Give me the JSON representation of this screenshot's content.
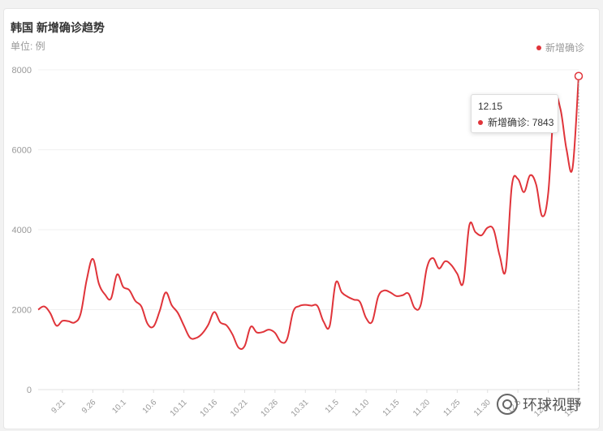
{
  "title": "韩国 新增确诊趋势",
  "subtitle": "单位: 例",
  "legend_label": "新增确诊",
  "tooltip": {
    "date": "12.15",
    "label": "新增确诊",
    "value": "7843"
  },
  "watermark": "环球视野",
  "colors": {
    "series": "#e0343a",
    "grid": "#f0f0f0"
  },
  "chart_data": {
    "type": "line",
    "title": "韩国 新增确诊趋势",
    "ylabel": "单位: 例",
    "ylim": [
      0,
      8000
    ],
    "yticks": [
      0,
      2000,
      4000,
      6000,
      8000
    ],
    "xticks": [
      "9.21",
      "9.26",
      "10.1",
      "10.6",
      "10.11",
      "10.16",
      "10.21",
      "10.26",
      "10.31",
      "11.5",
      "11.10",
      "11.15",
      "11.20",
      "11.25",
      "11.30",
      "12.5",
      "12.10",
      "12.15"
    ],
    "legend": "top-right",
    "series": [
      {
        "name": "新增确诊",
        "x": [
          "9.17",
          "9.18",
          "9.19",
          "9.20",
          "9.21",
          "9.22",
          "9.23",
          "9.24",
          "9.25",
          "9.26",
          "9.27",
          "9.28",
          "9.29",
          "9.30",
          "10.1",
          "10.2",
          "10.3",
          "10.4",
          "10.5",
          "10.6",
          "10.7",
          "10.8",
          "10.9",
          "10.10",
          "10.11",
          "10.12",
          "10.13",
          "10.14",
          "10.15",
          "10.16",
          "10.17",
          "10.18",
          "10.19",
          "10.20",
          "10.21",
          "10.22",
          "10.23",
          "10.24",
          "10.25",
          "10.26",
          "10.27",
          "10.28",
          "10.29",
          "10.30",
          "10.31",
          "11.1",
          "11.2",
          "11.3",
          "11.4",
          "11.5",
          "11.6",
          "11.7",
          "11.8",
          "11.9",
          "11.10",
          "11.11",
          "11.12",
          "11.13",
          "11.14",
          "11.15",
          "11.16",
          "11.17",
          "11.18",
          "11.19",
          "11.20",
          "11.21",
          "11.22",
          "11.23",
          "11.24",
          "11.25",
          "11.26",
          "11.27",
          "11.28",
          "11.29",
          "11.30",
          "12.1",
          "12.2",
          "12.3",
          "12.4",
          "12.5",
          "12.6",
          "12.7",
          "12.8",
          "12.9",
          "12.10",
          "12.11",
          "12.12",
          "12.13",
          "12.14",
          "12.15"
        ],
        "values": [
          2000,
          2080,
          1910,
          1600,
          1720,
          1710,
          1680,
          1900,
          2750,
          3270,
          2650,
          2380,
          2280,
          2880,
          2570,
          2490,
          2220,
          2080,
          1650,
          1580,
          1960,
          2430,
          2110,
          1920,
          1600,
          1300,
          1290,
          1400,
          1620,
          1940,
          1680,
          1610,
          1380,
          1050,
          1090,
          1570,
          1430,
          1440,
          1500,
          1420,
          1190,
          1270,
          1950,
          2090,
          2120,
          2100,
          2090,
          1700,
          1590,
          2670,
          2430,
          2320,
          2250,
          2190,
          1790,
          1700,
          2330,
          2480,
          2430,
          2340,
          2360,
          2400,
          2040,
          2120,
          3040,
          3290,
          3030,
          3210,
          3120,
          2900,
          2680,
          4110,
          3940,
          3860,
          4050,
          4000,
          3350,
          3000,
          5100,
          5270,
          4940,
          5360,
          5130,
          4340,
          4930,
          7180,
          7020,
          6010,
          5550,
          7843
        ]
      }
    ]
  }
}
